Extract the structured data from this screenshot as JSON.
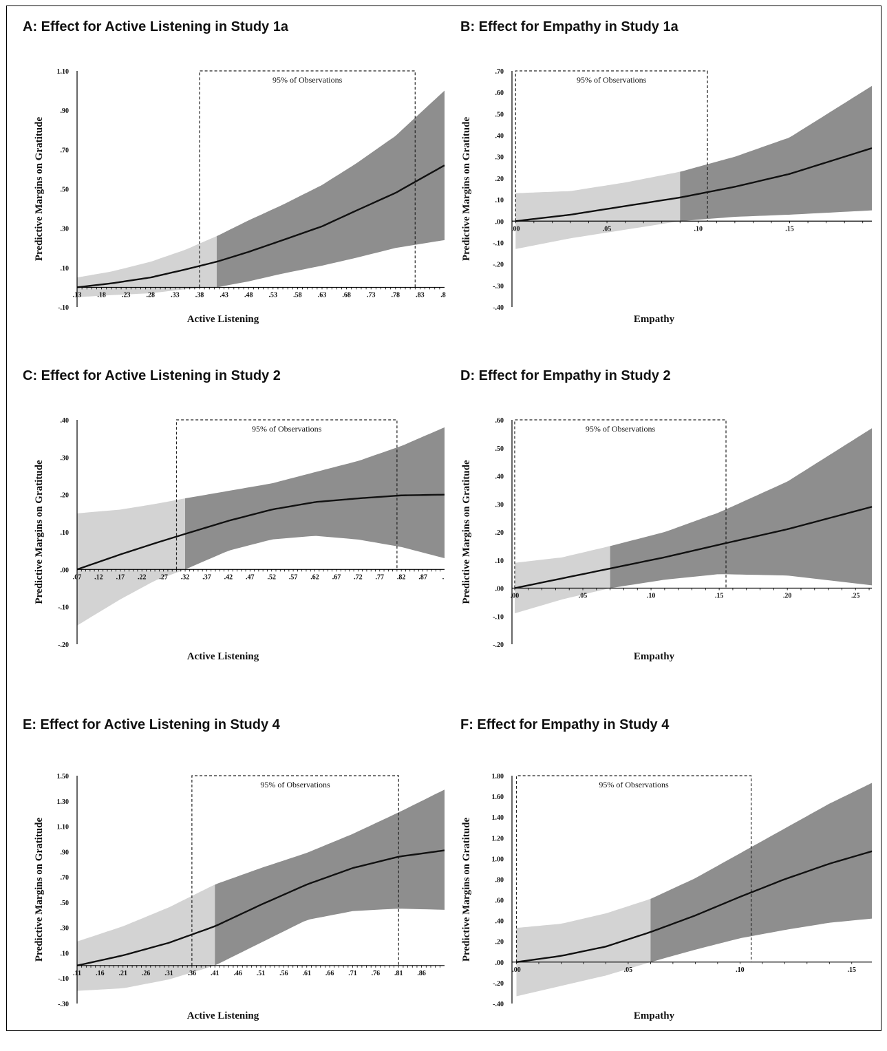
{
  "colors": {
    "ci_light": "#d3d3d3",
    "ci_dark": "#8e8e8e",
    "line": "#111111",
    "axis": "#000000"
  },
  "chart_data": [
    {
      "type": "line",
      "panel_title": "A: Effect for Active Listening in Study 1a",
      "xlabel": "Active Listening",
      "ylabel": "Predictive Margins on Gratitude",
      "xlim": [
        0.13,
        0.88
      ],
      "ylim": [
        -0.1,
        1.1
      ],
      "x_ticks": [
        ".13",
        ".18",
        ".23",
        ".28",
        ".33",
        ".38",
        ".43",
        ".48",
        ".53",
        ".58",
        ".63",
        ".68",
        ".73",
        ".78",
        ".83",
        ".8"
      ],
      "y_ticks": [
        "1.10",
        ".90",
        ".70",
        ".50",
        ".30",
        ".10",
        "-.10"
      ],
      "observations_label": "95% of Observations",
      "observations_range": [
        0.38,
        0.82
      ],
      "shade_split": 0.415,
      "series": [
        {
          "x": [
            0.13,
            0.2,
            0.28,
            0.35,
            0.415,
            0.48,
            0.55,
            0.63,
            0.7,
            0.78,
            0.88
          ],
          "y": [
            0.0,
            0.02,
            0.05,
            0.09,
            0.13,
            0.18,
            0.24,
            0.31,
            0.39,
            0.48,
            0.62
          ]
        }
      ],
      "ci_upper": {
        "x": [
          0.13,
          0.2,
          0.28,
          0.35,
          0.415,
          0.48,
          0.55,
          0.63,
          0.7,
          0.78,
          0.88
        ],
        "y": [
          0.05,
          0.08,
          0.13,
          0.19,
          0.26,
          0.34,
          0.42,
          0.52,
          0.63,
          0.77,
          1.0
        ]
      },
      "ci_lower": {
        "x": [
          0.13,
          0.2,
          0.28,
          0.35,
          0.415,
          0.48,
          0.55,
          0.63,
          0.7,
          0.78,
          0.88
        ],
        "y": [
          -0.05,
          -0.04,
          -0.03,
          -0.01,
          0.0,
          0.03,
          0.07,
          0.11,
          0.15,
          0.2,
          0.24
        ]
      }
    },
    {
      "type": "line",
      "panel_title": "B: Effect for Empathy in Study 1a",
      "xlabel": "Empathy",
      "ylabel": "Predictive Margins on Gratitude",
      "xlim": [
        -0.002,
        0.195
      ],
      "ylim": [
        -0.4,
        0.7
      ],
      "x_ticks": [
        ".00",
        ".05",
        ".10",
        ".15"
      ],
      "y_ticks": [
        ".70",
        ".60",
        ".50",
        ".40",
        ".30",
        ".20",
        ".10",
        ".00",
        "-.10",
        "-.20",
        "-.30",
        "-.40"
      ],
      "observations_label": "95% of Observations",
      "observations_range": [
        0.0,
        0.105
      ],
      "shade_split": 0.09,
      "series": [
        {
          "x": [
            0.0,
            0.03,
            0.06,
            0.09,
            0.12,
            0.15,
            0.195
          ],
          "y": [
            0.0,
            0.03,
            0.07,
            0.11,
            0.16,
            0.22,
            0.34
          ]
        }
      ],
      "ci_upper": {
        "x": [
          0.0,
          0.03,
          0.06,
          0.09,
          0.12,
          0.15,
          0.195
        ],
        "y": [
          0.13,
          0.14,
          0.18,
          0.23,
          0.3,
          0.39,
          0.63
        ]
      },
      "ci_lower": {
        "x": [
          0.0,
          0.03,
          0.06,
          0.09,
          0.12,
          0.15,
          0.195
        ],
        "y": [
          -0.13,
          -0.08,
          -0.04,
          0.0,
          0.02,
          0.03,
          0.05
        ]
      }
    },
    {
      "type": "line",
      "panel_title": "C: Effect for Active Listening in Study 2",
      "xlabel": "Active Listening",
      "ylabel": "Predictive Margins on Gratitude",
      "xlim": [
        0.07,
        0.92
      ],
      "ylim": [
        -0.2,
        0.4
      ],
      "x_ticks": [
        ".07",
        ".12",
        ".17",
        ".22",
        ".27",
        ".32",
        ".37",
        ".42",
        ".47",
        ".52",
        ".57",
        ".62",
        ".67",
        ".72",
        ".77",
        ".82",
        ".87",
        "."
      ],
      "y_ticks": [
        ".40",
        ".30",
        ".20",
        ".10",
        ".00",
        "-.10",
        "-.20"
      ],
      "observations_label": "95% of Observations",
      "observations_range": [
        0.3,
        0.81
      ],
      "shade_split": 0.32,
      "series": [
        {
          "x": [
            0.07,
            0.17,
            0.25,
            0.32,
            0.42,
            0.52,
            0.62,
            0.72,
            0.82,
            0.92
          ],
          "y": [
            0.0,
            0.04,
            0.07,
            0.095,
            0.13,
            0.16,
            0.18,
            0.19,
            0.198,
            0.2
          ]
        }
      ],
      "ci_upper": {
        "x": [
          0.07,
          0.17,
          0.25,
          0.32,
          0.42,
          0.52,
          0.62,
          0.72,
          0.82,
          0.92
        ],
        "y": [
          0.15,
          0.16,
          0.175,
          0.19,
          0.21,
          0.23,
          0.26,
          0.29,
          0.33,
          0.38
        ]
      },
      "ci_lower": {
        "x": [
          0.07,
          0.17,
          0.25,
          0.32,
          0.42,
          0.52,
          0.62,
          0.72,
          0.82,
          0.92
        ],
        "y": [
          -0.15,
          -0.08,
          -0.03,
          0.0,
          0.05,
          0.08,
          0.09,
          0.08,
          0.06,
          0.03
        ]
      }
    },
    {
      "type": "line",
      "panel_title": "D: Effect for Empathy in Study 2",
      "xlabel": "Empathy",
      "ylabel": "Predictive Margins on Gratitude",
      "xlim": [
        -0.002,
        0.262
      ],
      "ylim": [
        -0.2,
        0.6
      ],
      "x_ticks": [
        ".00",
        ".05",
        ".10",
        ".15",
        ".20",
        ".25"
      ],
      "y_ticks": [
        ".60",
        ".50",
        ".40",
        ".30",
        ".20",
        ".10",
        ".00",
        "-.10",
        "-.20"
      ],
      "observations_label": "95% of Observations",
      "observations_range": [
        0.0,
        0.155
      ],
      "shade_split": 0.07,
      "series": [
        {
          "x": [
            0.0,
            0.035,
            0.07,
            0.11,
            0.15,
            0.2,
            0.262
          ],
          "y": [
            0.0,
            0.035,
            0.07,
            0.11,
            0.155,
            0.21,
            0.29
          ]
        }
      ],
      "ci_upper": {
        "x": [
          0.0,
          0.035,
          0.07,
          0.11,
          0.15,
          0.2,
          0.262
        ],
        "y": [
          0.09,
          0.11,
          0.15,
          0.2,
          0.27,
          0.38,
          0.57
        ]
      },
      "ci_lower": {
        "x": [
          0.0,
          0.035,
          0.07,
          0.11,
          0.15,
          0.2,
          0.262
        ],
        "y": [
          -0.09,
          -0.04,
          0.0,
          0.03,
          0.05,
          0.045,
          0.01
        ]
      }
    },
    {
      "type": "line",
      "panel_title": "E: Effect for Active Listening in Study 4",
      "xlabel": "Active Listening",
      "ylabel": "Predictive Margins on Gratitude",
      "xlim": [
        0.11,
        0.91
      ],
      "ylim": [
        -0.3,
        1.5
      ],
      "x_ticks": [
        ".11",
        ".16",
        ".21",
        ".26",
        ".31",
        ".36",
        ".41",
        ".46",
        ".51",
        ".56",
        ".61",
        ".66",
        ".71",
        ".76",
        ".81",
        ".86"
      ],
      "y_ticks": [
        "1.50",
        "1.30",
        "1.10",
        ".90",
        ".70",
        ".50",
        ".30",
        ".10",
        "-.10",
        "-.30"
      ],
      "observations_label": "95% of Observations",
      "observations_range": [
        0.36,
        0.81
      ],
      "shade_split": 0.41,
      "series": [
        {
          "x": [
            0.11,
            0.21,
            0.31,
            0.41,
            0.51,
            0.61,
            0.71,
            0.81,
            0.91
          ],
          "y": [
            0.0,
            0.08,
            0.18,
            0.31,
            0.48,
            0.64,
            0.77,
            0.86,
            0.91
          ]
        }
      ],
      "ci_upper": {
        "x": [
          0.11,
          0.21,
          0.31,
          0.41,
          0.51,
          0.61,
          0.71,
          0.81,
          0.91
        ],
        "y": [
          0.19,
          0.31,
          0.46,
          0.64,
          0.77,
          0.89,
          1.04,
          1.21,
          1.39
        ]
      },
      "ci_lower": {
        "x": [
          0.11,
          0.21,
          0.31,
          0.41,
          0.51,
          0.61,
          0.71,
          0.81,
          0.91
        ],
        "y": [
          -0.2,
          -0.18,
          -0.11,
          0.0,
          0.18,
          0.36,
          0.43,
          0.45,
          0.44
        ]
      }
    },
    {
      "type": "line",
      "panel_title": "F: Effect for Empathy in Study 4",
      "xlabel": "Empathy",
      "ylabel": "Predictive Margins on Gratitude",
      "xlim": [
        -0.002,
        0.159
      ],
      "ylim": [
        -0.4,
        1.8
      ],
      "x_ticks": [
        ".00",
        ".05",
        ".10",
        ".15"
      ],
      "y_ticks": [
        "1.80",
        "1.60",
        "1.40",
        "1.20",
        "1.00",
        ".80",
        ".60",
        ".40",
        ".20",
        ".00",
        "-.20",
        "-.40"
      ],
      "observations_label": "95% of Observations",
      "observations_range": [
        0.0,
        0.105
      ],
      "shade_split": 0.06,
      "series": [
        {
          "x": [
            0.0,
            0.02,
            0.04,
            0.06,
            0.08,
            0.1,
            0.12,
            0.14,
            0.159
          ],
          "y": [
            0.0,
            0.06,
            0.15,
            0.29,
            0.45,
            0.63,
            0.8,
            0.95,
            1.07
          ]
        }
      ],
      "ci_upper": {
        "x": [
          0.0,
          0.02,
          0.04,
          0.06,
          0.08,
          0.1,
          0.12,
          0.14,
          0.159
        ],
        "y": [
          0.33,
          0.37,
          0.47,
          0.61,
          0.81,
          1.05,
          1.29,
          1.53,
          1.73
        ]
      },
      "ci_lower": {
        "x": [
          0.0,
          0.02,
          0.04,
          0.06,
          0.08,
          0.1,
          0.12,
          0.14,
          0.159
        ],
        "y": [
          -0.33,
          -0.23,
          -0.13,
          0.0,
          0.12,
          0.23,
          0.31,
          0.38,
          0.42
        ]
      }
    }
  ]
}
